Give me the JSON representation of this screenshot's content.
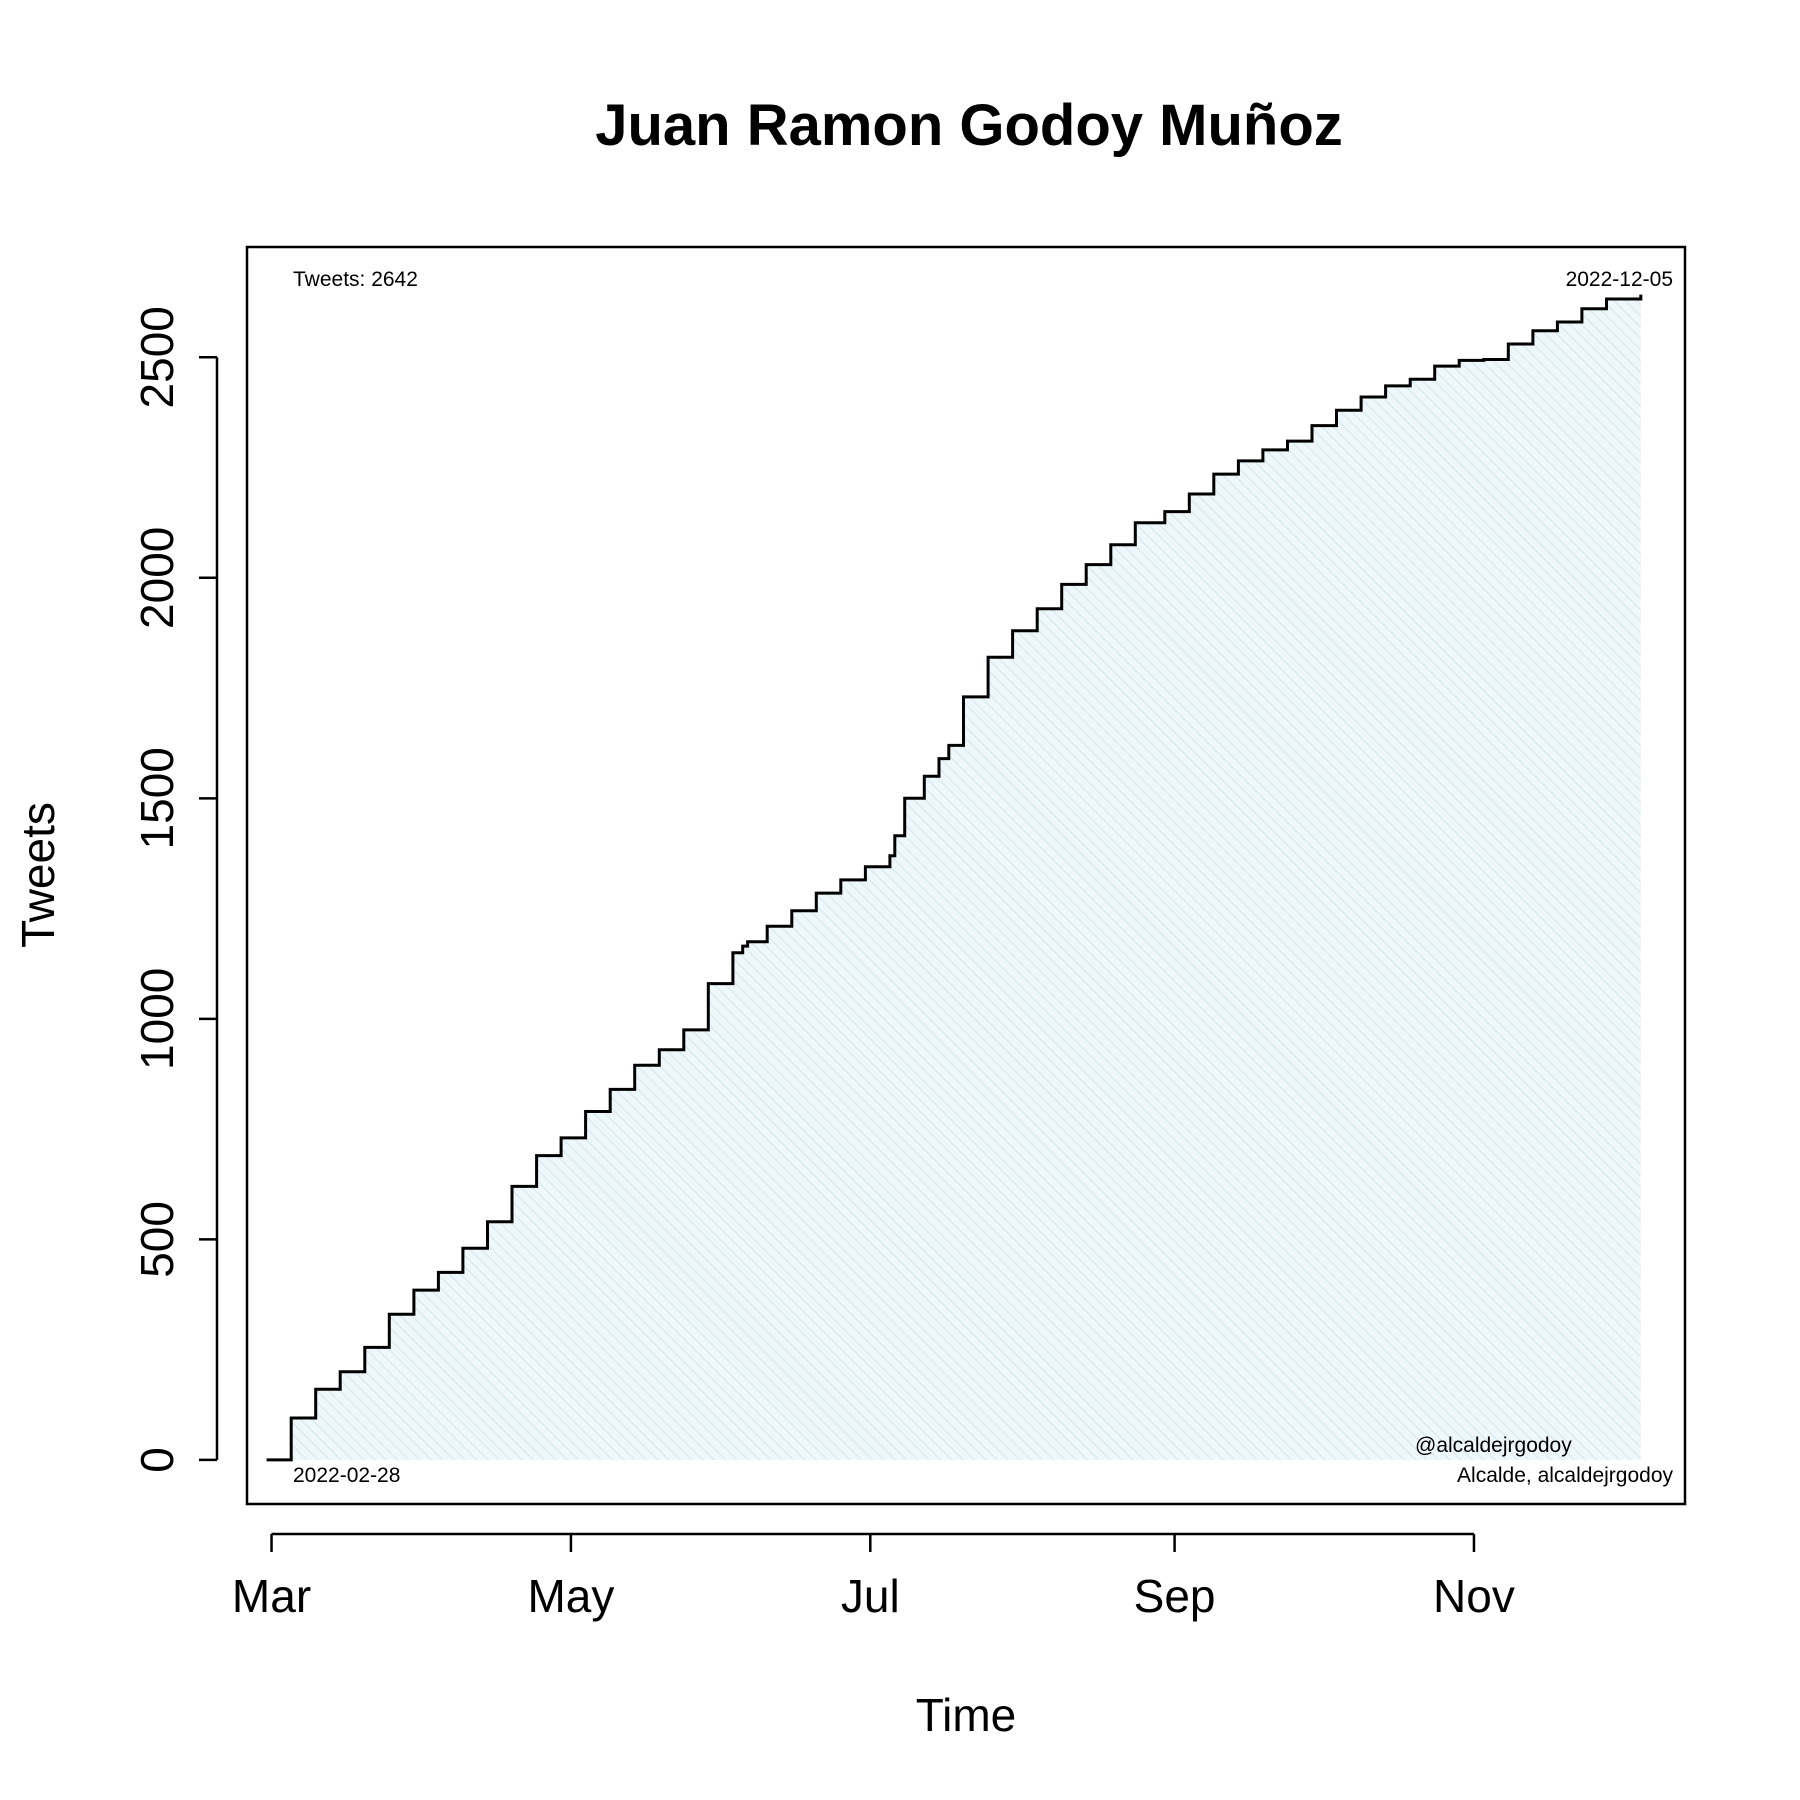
{
  "chart_data": {
    "type": "area",
    "title": "Juan Ramon Godoy Muñoz",
    "xlabel": "Time",
    "ylabel": "Tweets",
    "x_range": [
      "2022-02-24",
      "2022-12-14"
    ],
    "ylim": [
      -100,
      2750
    ],
    "x_ticks": [
      {
        "date": "2022-03-01",
        "label": "Mar"
      },
      {
        "date": "2022-05-01",
        "label": "May"
      },
      {
        "date": "2022-07-01",
        "label": "Jul"
      },
      {
        "date": "2022-09-01",
        "label": "Sep"
      },
      {
        "date": "2022-11-01",
        "label": "Nov"
      }
    ],
    "y_ticks": [
      0,
      500,
      1000,
      1500,
      2000,
      2500
    ],
    "annotations": {
      "total": "Tweets: 2642",
      "start_date": "2022-02-28",
      "end_date": "2022-12-05",
      "handle": "@alcaldejrgodoy",
      "description": "Alcalde, alcaldejrgodoy"
    },
    "colors": {
      "fill": "#e8f4f7",
      "line": "#000000"
    },
    "series": [
      {
        "x": [
          "2022-02-28",
          "2022-03-05",
          "2022-03-10",
          "2022-03-15",
          "2022-03-20",
          "2022-03-25",
          "2022-03-30",
          "2022-04-04",
          "2022-04-09",
          "2022-04-14",
          "2022-04-19",
          "2022-04-24",
          "2022-04-29",
          "2022-05-04",
          "2022-05-09",
          "2022-05-14",
          "2022-05-19",
          "2022-05-24",
          "2022-05-29",
          "2022-06-03",
          "2022-06-05",
          "2022-06-06",
          "2022-06-10",
          "2022-06-15",
          "2022-06-20",
          "2022-06-25",
          "2022-06-30",
          "2022-07-05",
          "2022-07-06",
          "2022-07-08",
          "2022-07-12",
          "2022-07-15",
          "2022-07-17",
          "2022-07-20",
          "2022-07-25",
          "2022-07-30",
          "2022-08-04",
          "2022-08-09",
          "2022-08-14",
          "2022-08-19",
          "2022-08-24",
          "2022-08-30",
          "2022-09-04",
          "2022-09-09",
          "2022-09-14",
          "2022-09-19",
          "2022-09-24",
          "2022-09-29",
          "2022-10-04",
          "2022-10-09",
          "2022-10-14",
          "2022-10-19",
          "2022-10-24",
          "2022-10-29",
          "2022-11-03",
          "2022-11-08",
          "2022-11-13",
          "2022-11-18",
          "2022-11-23",
          "2022-11-28",
          "2022-12-05"
        ],
        "y": [
          0,
          95,
          160,
          200,
          255,
          330,
          385,
          425,
          480,
          540,
          620,
          690,
          730,
          790,
          840,
          895,
          930,
          975,
          1080,
          1150,
          1165,
          1175,
          1210,
          1245,
          1285,
          1315,
          1345,
          1370,
          1415,
          1500,
          1550,
          1590,
          1620,
          1730,
          1820,
          1880,
          1930,
          1985,
          2030,
          2075,
          2125,
          2150,
          2190,
          2235,
          2265,
          2290,
          2310,
          2345,
          2380,
          2410,
          2435,
          2450,
          2480,
          2493,
          2495,
          2530,
          2560,
          2580,
          2610,
          2632,
          2642
        ]
      }
    ]
  }
}
